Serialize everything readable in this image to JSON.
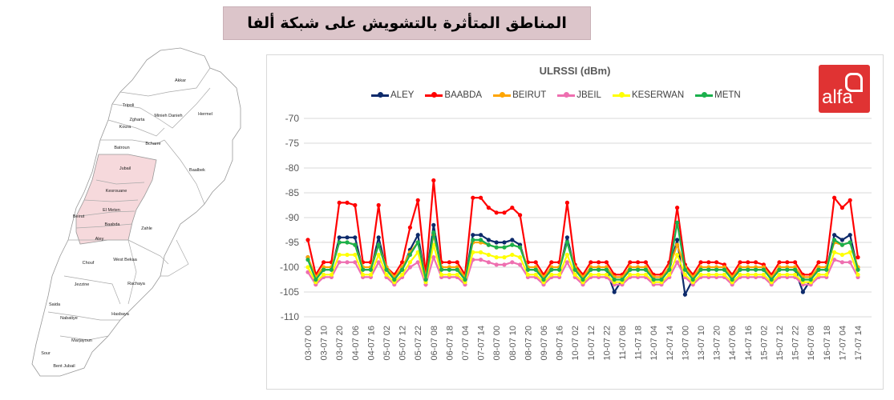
{
  "banner": {
    "title": "المناطق المتأثرة بالتشويش على شبكة ألفا"
  },
  "map": {
    "labels": [
      "Akkar",
      "Tripoli",
      "Minieh Danieh",
      "Hermel",
      "Zgharta",
      "Koura",
      "Bcharre",
      "Batroun",
      "Jubail",
      "Baalbek",
      "Kesrouane",
      "El Meten",
      "Beirut",
      "Baabda",
      "Zahle",
      "Aley",
      "Chouf",
      "West Bekaa",
      "Jezzine",
      "Rachaya",
      "Saida",
      "Nabatiye",
      "Hasbaya",
      "Marjayoun",
      "Sour",
      "Bent Jubail"
    ],
    "highlighted": [
      "Jubail",
      "Kesrouane",
      "El Meten",
      "Baabda",
      "Aley"
    ],
    "highlight_color": "#f6d9dc"
  },
  "logo": {
    "text": "alfa",
    "color": "#e03333"
  },
  "chart_data": {
    "type": "line",
    "title": "ULRSSI (dBm)",
    "xlabel": "",
    "ylabel": "",
    "ylim": [
      -110,
      -70
    ],
    "yticks": [
      -70,
      -75,
      -80,
      -85,
      -90,
      -95,
      -100,
      -105,
      -110
    ],
    "grid": true,
    "legend": "top",
    "x_step_hours": 5,
    "xtick_labels": [
      "03-07 00",
      "03-07 10",
      "03-07 20",
      "04-07 06",
      "04-07 16",
      "05-07 02",
      "05-07 12",
      "05-07 22",
      "06-07 08",
      "06-07 18",
      "07-07 04",
      "07-07 14",
      "08-07 00",
      "08-07 10",
      "08-07 20",
      "09-07 06",
      "09-07 16",
      "10-07 02",
      "10-07 12",
      "10-07 22",
      "11-07 08",
      "11-07 18",
      "12-07 04",
      "12-07 14",
      "13-07 00",
      "13-07 10",
      "13-07 20",
      "14-07 06",
      "14-07 16",
      "15-07 02",
      "15-07 12",
      "15-07 22",
      "16-07 08",
      "16-07 18",
      "17-07 04",
      "17-07 14"
    ],
    "series": [
      {
        "name": "ALEY",
        "color": "#0d2a6b",
        "values": [
          -98,
          -102.5,
          -100.5,
          -100.5,
          -94,
          -94,
          -94,
          -100.5,
          -100.5,
          -94,
          -100.5,
          -102.5,
          -100.5,
          -96.5,
          -93.5,
          -102.5,
          -91.5,
          -100.5,
          -100.5,
          -100.5,
          -102.5,
          -93.5,
          -93.5,
          -94.5,
          -95,
          -95,
          -94.5,
          -95.5,
          -100.5,
          -100.5,
          -102.5,
          -100.5,
          -100.5,
          -94,
          -100.5,
          -102.5,
          -100.5,
          -100.5,
          -100.5,
          -105,
          -102.5,
          -100.5,
          -100.5,
          -100.5,
          -102.5,
          -102.5,
          -100.5,
          -94.5,
          -105.5,
          -102.5,
          -100.5,
          -100.5,
          -100.5,
          -100.5,
          -102.5,
          -100.5,
          -100.5,
          -100.5,
          -100.5,
          -102.5,
          -100.5,
          -100.5,
          -100.5,
          -105,
          -102.5,
          -100.5,
          -100.5,
          -93.5,
          -94.5,
          -93.5,
          -100.5
        ]
      },
      {
        "name": "BAABDA",
        "color": "#ff0000",
        "values": [
          -94.5,
          -101.5,
          -99,
          -99,
          -87,
          -87,
          -87.5,
          -99,
          -99,
          -87.5,
          -100,
          -101.5,
          -99,
          -92,
          -86.5,
          -101.5,
          -82.5,
          -99,
          -99,
          -99,
          -101.5,
          -86,
          -86,
          -88,
          -89,
          -89,
          -88,
          -89.5,
          -99,
          -99,
          -101.5,
          -99,
          -99,
          -87,
          -99.5,
          -101.5,
          -99,
          -99,
          -99,
          -101.5,
          -101.5,
          -99,
          -99,
          -99,
          -101.5,
          -101.5,
          -99,
          -88,
          -99.5,
          -101.5,
          -99,
          -99,
          -99,
          -99.5,
          -101.5,
          -99,
          -99,
          -99,
          -99.5,
          -101.5,
          -99,
          -99,
          -99,
          -101.5,
          -101.5,
          -99,
          -99,
          -86,
          -88,
          -86.5,
          -98
        ]
      },
      {
        "name": "BEIRUT",
        "color": "#ffa500",
        "values": [
          -98,
          -102,
          -100,
          -100,
          -95,
          -95,
          -95.5,
          -100,
          -100,
          -95.5,
          -100,
          -102,
          -100,
          -97,
          -95,
          -102,
          -93.5,
          -100,
          -100,
          -100,
          -102,
          -95,
          -95,
          -95.5,
          -96,
          -96,
          -95.5,
          -96,
          -100,
          -100,
          -102,
          -100,
          -100,
          -95,
          -100,
          -102,
          -100,
          -100,
          -100,
          -102,
          -102,
          -100,
          -100,
          -100,
          -102,
          -102,
          -100,
          -95.5,
          -100,
          -102,
          -100,
          -100,
          -100,
          -100,
          -102,
          -100,
          -100,
          -100,
          -100,
          -102,
          -100,
          -100,
          -100,
          -102,
          -102,
          -100,
          -100,
          -95,
          -95.5,
          -95,
          -100
        ]
      },
      {
        "name": "JBEIL",
        "color": "#ee6fb0",
        "values": [
          -101,
          -103.5,
          -102,
          -102,
          -99,
          -99,
          -99,
          -102,
          -102,
          -99,
          -102,
          -103.5,
          -102,
          -100,
          -99,
          -103.5,
          -98,
          -102,
          -102,
          -102,
          -103.5,
          -98.5,
          -98.5,
          -99,
          -99.5,
          -99.5,
          -99,
          -99.5,
          -102,
          -102,
          -103.5,
          -102,
          -102,
          -99,
          -102,
          -103.5,
          -102,
          -102,
          -102,
          -103.5,
          -103.5,
          -102,
          -102,
          -102,
          -103.5,
          -103.5,
          -102,
          -99,
          -102,
          -103.5,
          -102,
          -102,
          -102,
          -102,
          -103.5,
          -102,
          -102,
          -102,
          -102,
          -103.5,
          -102,
          -102,
          -102,
          -103.5,
          -103.5,
          -102,
          -102,
          -98.5,
          -99,
          -99,
          -102
        ]
      },
      {
        "name": "KESERWAN",
        "color": "#ffff00",
        "values": [
          -100,
          -103,
          -101.5,
          -101.5,
          -97.5,
          -97.5,
          -97.5,
          -101.5,
          -101.5,
          -97.5,
          -101.5,
          -103,
          -101.5,
          -99,
          -97,
          -103,
          -95.5,
          -101.5,
          -101.5,
          -101.5,
          -103,
          -97,
          -97,
          -97.5,
          -98,
          -98,
          -97.5,
          -98,
          -101.5,
          -101.5,
          -103,
          -101.5,
          -101.5,
          -97.5,
          -101.5,
          -103,
          -101.5,
          -101.5,
          -101.5,
          -103,
          -103,
          -101.5,
          -101.5,
          -101.5,
          -103,
          -103,
          -101.5,
          -97.5,
          -101.5,
          -103,
          -101.5,
          -101.5,
          -101.5,
          -101.5,
          -103,
          -101.5,
          -101.5,
          -101.5,
          -101.5,
          -103,
          -101.5,
          -101.5,
          -101.5,
          -103,
          -103,
          -101.5,
          -101.5,
          -97,
          -97.5,
          -97,
          -101.5
        ]
      },
      {
        "name": "METN",
        "color": "#1ab04c",
        "values": [
          -98.5,
          -102.5,
          -100.5,
          -100.5,
          -95,
          -95,
          -95.5,
          -100.5,
          -100.5,
          -95.5,
          -100.5,
          -102.5,
          -100.5,
          -97.5,
          -95,
          -102.5,
          -93,
          -100.5,
          -100.5,
          -100.5,
          -102.5,
          -94.5,
          -94.5,
          -95.5,
          -96,
          -96,
          -95.5,
          -96,
          -100.5,
          -100.5,
          -102.5,
          -100.5,
          -100.5,
          -95,
          -100.5,
          -102.5,
          -100.5,
          -100.5,
          -100.5,
          -102.5,
          -102.5,
          -100.5,
          -100.5,
          -100.5,
          -102.5,
          -102.5,
          -100.5,
          -91,
          -100.5,
          -102.5,
          -100.5,
          -100.5,
          -100.5,
          -100.5,
          -102.5,
          -100.5,
          -100.5,
          -100.5,
          -100.5,
          -102.5,
          -100.5,
          -100.5,
          -100.5,
          -102.5,
          -102.5,
          -100.5,
          -100.5,
          -94.5,
          -95.5,
          -95,
          -100.5
        ]
      }
    ]
  }
}
